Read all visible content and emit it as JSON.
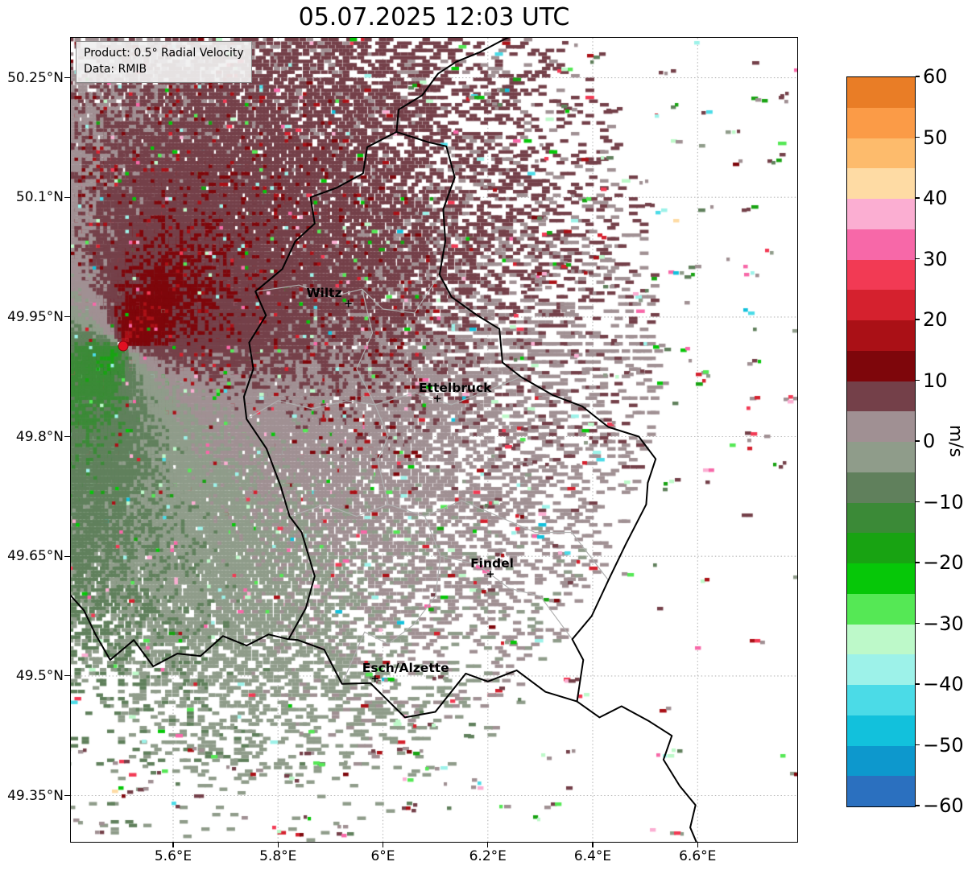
{
  "title": "05.07.2025 12:03 UTC",
  "info_box": {
    "line1": "Product: 0.5° Radial Velocity",
    "line2": "Data: RMIB"
  },
  "axes": {
    "x_ticks": [
      {
        "label": "5.6°E",
        "lon": 5.6
      },
      {
        "label": "5.8°E",
        "lon": 5.8
      },
      {
        "label": "6°E",
        "lon": 6.0
      },
      {
        "label": "6.2°E",
        "lon": 6.2
      },
      {
        "label": "6.4°E",
        "lon": 6.4
      },
      {
        "label": "6.6°E",
        "lon": 6.6
      }
    ],
    "y_ticks": [
      {
        "label": "50.25°N",
        "lat": 50.25
      },
      {
        "label": "50.1°N",
        "lat": 50.1
      },
      {
        "label": "49.95°N",
        "lat": 49.95
      },
      {
        "label": "49.8°N",
        "lat": 49.8
      },
      {
        "label": "49.65°N",
        "lat": 49.65
      },
      {
        "label": "49.5°N",
        "lat": 49.5
      },
      {
        "label": "49.35°N",
        "lat": 49.35
      }
    ]
  },
  "colorbar": {
    "unit": "m/s",
    "vmin": -60,
    "vmax": 60,
    "ticks": [
      {
        "label": "60",
        "value": 60
      },
      {
        "label": "50",
        "value": 50
      },
      {
        "label": "40",
        "value": 40
      },
      {
        "label": "30",
        "value": 30
      },
      {
        "label": "20",
        "value": 20
      },
      {
        "label": "10",
        "value": 10
      },
      {
        "label": "0",
        "value": 0
      },
      {
        "label": "−10",
        "value": -10
      },
      {
        "label": "−20",
        "value": -20
      },
      {
        "label": "−30",
        "value": -30
      },
      {
        "label": "−40",
        "value": -40
      },
      {
        "label": "−50",
        "value": -50
      },
      {
        "label": "−60",
        "value": -60
      }
    ],
    "segments": [
      {
        "from": 55,
        "to": 60,
        "color": "#e97d26"
      },
      {
        "from": 50,
        "to": 55,
        "color": "#fb9b47"
      },
      {
        "from": 45,
        "to": 50,
        "color": "#fdbb6c"
      },
      {
        "from": 40,
        "to": 45,
        "color": "#fedba4"
      },
      {
        "from": 35,
        "to": 40,
        "color": "#fbaed2"
      },
      {
        "from": 30,
        "to": 35,
        "color": "#f768a8"
      },
      {
        "from": 25,
        "to": 30,
        "color": "#f23a54"
      },
      {
        "from": 20,
        "to": 25,
        "color": "#d5212e"
      },
      {
        "from": 15,
        "to": 20,
        "color": "#aa1016"
      },
      {
        "from": 10,
        "to": 15,
        "color": "#7e060b"
      },
      {
        "from": 5,
        "to": 10,
        "color": "#744049"
      },
      {
        "from": 0,
        "to": 5,
        "color": "#a09093"
      },
      {
        "from": -5,
        "to": 0,
        "color": "#8f9c8a"
      },
      {
        "from": -10,
        "to": -5,
        "color": "#60805c"
      },
      {
        "from": -15,
        "to": -10,
        "color": "#3b8a37"
      },
      {
        "from": -20,
        "to": -15,
        "color": "#18a312"
      },
      {
        "from": -25,
        "to": -20,
        "color": "#06c708"
      },
      {
        "from": -30,
        "to": -25,
        "color": "#55e855"
      },
      {
        "from": -35,
        "to": -30,
        "color": "#bdf9c9"
      },
      {
        "from": -40,
        "to": -35,
        "color": "#9df2e9"
      },
      {
        "from": -45,
        "to": -40,
        "color": "#4bdbe7"
      },
      {
        "from": -50,
        "to": -45,
        "color": "#12c1dc"
      },
      {
        "from": -55,
        "to": -50,
        "color": "#0d98cd"
      },
      {
        "from": -60,
        "to": -55,
        "color": "#2b70bf"
      }
    ]
  },
  "map": {
    "extent": {
      "lon_min": 5.405,
      "lon_max": 6.79,
      "lat_min": 49.292,
      "lat_max": 50.3
    },
    "radar_site": {
      "lon": 5.505,
      "lat": 49.914,
      "color": "#e11022"
    },
    "cities": [
      {
        "name": "Wiltz",
        "lon": 5.934,
        "lat": 49.966,
        "label_dx": -30
      },
      {
        "name": "Ettelbruck",
        "lon": 6.104,
        "lat": 49.847,
        "label_dx": 22
      },
      {
        "name": "Findel",
        "lon": 6.205,
        "lat": 49.627,
        "label_dx": 2
      },
      {
        "name": "Esch/Alzette",
        "lon": 5.985,
        "lat": 49.496,
        "label_dx": 38
      }
    ],
    "national_borders": [
      [
        [
          6.026,
          50.182
        ],
        [
          6.087,
          50.169
        ],
        [
          6.121,
          50.164
        ],
        [
          6.137,
          50.125
        ],
        [
          6.115,
          50.085
        ],
        [
          6.119,
          50.045
        ],
        [
          6.108,
          50.003
        ],
        [
          6.131,
          49.975
        ],
        [
          6.18,
          49.952
        ],
        [
          6.222,
          49.935
        ],
        [
          6.228,
          49.893
        ],
        [
          6.263,
          49.875
        ],
        [
          6.324,
          49.852
        ],
        [
          6.38,
          49.838
        ],
        [
          6.43,
          49.812
        ],
        [
          6.488,
          49.8
        ],
        [
          6.52,
          49.772
        ],
        [
          6.505,
          49.742
        ],
        [
          6.502,
          49.715
        ],
        [
          6.463,
          49.665
        ],
        [
          6.43,
          49.62
        ],
        [
          6.398,
          49.575
        ],
        [
          6.361,
          49.546
        ],
        [
          6.382,
          49.52
        ],
        [
          6.37,
          49.468
        ],
        [
          6.31,
          49.48
        ],
        [
          6.255,
          49.507
        ],
        [
          6.2,
          49.493
        ],
        [
          6.158,
          49.503
        ],
        [
          6.1,
          49.455
        ],
        [
          6.042,
          49.448
        ],
        [
          5.976,
          49.491
        ],
        [
          5.922,
          49.49
        ],
        [
          5.888,
          49.533
        ],
        [
          5.838,
          49.545
        ],
        [
          5.82,
          49.546
        ],
        [
          5.853,
          49.585
        ],
        [
          5.87,
          49.625
        ],
        [
          5.845,
          49.68
        ],
        [
          5.822,
          49.7
        ],
        [
          5.805,
          49.738
        ],
        [
          5.778,
          49.785
        ],
        [
          5.74,
          49.822
        ],
        [
          5.735,
          49.85
        ],
        [
          5.753,
          49.885
        ],
        [
          5.745,
          49.918
        ],
        [
          5.777,
          49.952
        ],
        [
          5.757,
          49.982
        ],
        [
          5.808,
          50.01
        ],
        [
          5.833,
          50.045
        ],
        [
          5.87,
          50.067
        ],
        [
          5.862,
          50.1
        ],
        [
          5.912,
          50.112
        ],
        [
          5.962,
          50.13
        ],
        [
          5.97,
          50.163
        ],
        [
          6.026,
          50.182
        ]
      ],
      [
        [
          6.026,
          50.182
        ],
        [
          6.03,
          50.21
        ],
        [
          6.075,
          50.228
        ],
        [
          6.105,
          50.255
        ],
        [
          6.14,
          50.27
        ],
        [
          6.185,
          50.282
        ],
        [
          6.225,
          50.296
        ],
        [
          6.275,
          50.312
        ]
      ],
      [
        [
          6.37,
          49.468
        ],
        [
          6.413,
          49.448
        ],
        [
          6.455,
          49.462
        ],
        [
          6.508,
          49.443
        ],
        [
          6.551,
          49.425
        ],
        [
          6.535,
          49.395
        ],
        [
          6.566,
          49.362
        ],
        [
          6.596,
          49.338
        ],
        [
          6.586,
          49.31
        ],
        [
          6.6,
          49.288
        ]
      ],
      [
        [
          5.82,
          49.546
        ],
        [
          5.782,
          49.552
        ],
        [
          5.74,
          49.538
        ],
        [
          5.695,
          49.55
        ],
        [
          5.652,
          49.525
        ],
        [
          5.608,
          49.528
        ],
        [
          5.562,
          49.512
        ],
        [
          5.525,
          49.545
        ],
        [
          5.48,
          49.52
        ],
        [
          5.452,
          49.552
        ],
        [
          5.43,
          49.582
        ],
        [
          5.403,
          49.602
        ]
      ]
    ],
    "district_borders": [
      [
        [
          5.757,
          49.982
        ],
        [
          5.84,
          49.99
        ],
        [
          5.9,
          49.975
        ],
        [
          5.96,
          49.985
        ],
        [
          6.0,
          49.96
        ],
        [
          6.06,
          49.955
        ],
        [
          6.108,
          50.003
        ]
      ],
      [
        [
          5.96,
          49.985
        ],
        [
          5.98,
          49.93
        ],
        [
          5.95,
          49.885
        ],
        [
          5.985,
          49.84
        ]
      ],
      [
        [
          5.74,
          49.822
        ],
        [
          5.8,
          49.845
        ],
        [
          5.865,
          49.835
        ],
        [
          5.93,
          49.845
        ],
        [
          5.985,
          49.84
        ],
        [
          6.06,
          49.855
        ],
        [
          6.13,
          49.84
        ],
        [
          6.19,
          49.855
        ],
        [
          6.263,
          49.875
        ]
      ],
      [
        [
          5.822,
          49.7
        ],
        [
          5.89,
          49.715
        ],
        [
          5.95,
          49.7
        ],
        [
          6.01,
          49.715
        ],
        [
          6.08,
          49.7
        ],
        [
          6.15,
          49.72
        ],
        [
          6.22,
          49.7
        ],
        [
          6.29,
          49.68
        ],
        [
          6.36,
          49.68
        ],
        [
          6.43,
          49.62
        ]
      ],
      [
        [
          6.08,
          49.7
        ],
        [
          6.11,
          49.65
        ],
        [
          6.1,
          49.6
        ],
        [
          6.06,
          49.565
        ],
        [
          6.01,
          49.54
        ],
        [
          5.965,
          49.555
        ],
        [
          5.922,
          49.49
        ]
      ],
      [
        [
          6.11,
          49.65
        ],
        [
          6.18,
          49.64
        ],
        [
          6.24,
          49.61
        ],
        [
          6.3,
          49.6
        ],
        [
          6.361,
          49.546
        ]
      ],
      [
        [
          5.985,
          49.84
        ],
        [
          6.01,
          49.8
        ],
        [
          5.99,
          49.77
        ],
        [
          6.01,
          49.715
        ]
      ]
    ]
  },
  "radar_field": {
    "seed": 1337,
    "flow_axis_deg": 45,
    "outbound_side": "northeast",
    "inbound_side": "southwest"
  }
}
